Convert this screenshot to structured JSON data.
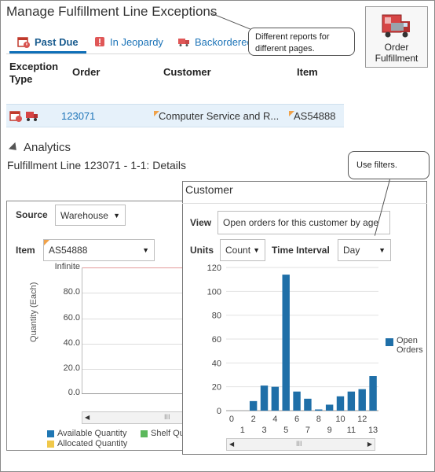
{
  "page": {
    "title": "Manage Fulfillment Line Exceptions"
  },
  "tabs": [
    {
      "label": "Past Due",
      "icon": "calendar-alert-icon"
    },
    {
      "label": "In Jeopardy",
      "icon": "jeopardy-icon"
    },
    {
      "label": "Backordered",
      "icon": "backorder-icon"
    }
  ],
  "callouts": {
    "reports": "Different  reports for different  pages.",
    "filters": "Use filters."
  },
  "order_fulfillment_button": {
    "line1": "Order",
    "line2": "Fulfillment"
  },
  "table": {
    "headers": {
      "exception_type_1": "Exception",
      "exception_type_2": "Type",
      "order": "Order",
      "customer": "Customer",
      "item": "Item"
    },
    "row": {
      "order": "123071",
      "customer": "Computer Service and R...",
      "item": "AS54888"
    }
  },
  "analytics": {
    "heading": "Analytics",
    "details_title": "Fulfillment Line 123071 - 1-1: Details"
  },
  "left_panel": {
    "source_label": "Source",
    "source_value": "Warehouse",
    "item_label": "Item",
    "item_value": "AS54888",
    "y_axis_label": "Quantity (Each)",
    "top_label": "Infinite",
    "ticks": [
      "80.0",
      "60.0",
      "40.0",
      "20.0",
      "0.0"
    ],
    "legend": [
      {
        "label": "Available Quantity",
        "color": "#1f77b4"
      },
      {
        "label": "Shelf Qu",
        "color": "#5cb85c"
      },
      {
        "label": "Allocated Quantity",
        "color": "#f0c84a"
      }
    ],
    "scroll_grip": "III"
  },
  "customer_panel": {
    "title": "Customer",
    "view_label": "View",
    "view_value": "Open orders for this customer by age",
    "units_label": "Units",
    "units_value": "Count",
    "interval_label": "Time Interval",
    "interval_value": "Day",
    "legend_label_1": "Open",
    "legend_label_2": "Orders",
    "scroll_grip": "III"
  },
  "chart_data": {
    "type": "bar",
    "categories": [
      "0",
      "1",
      "2",
      "3",
      "4",
      "5",
      "6",
      "7",
      "8",
      "9",
      "10",
      "11",
      "12",
      "13"
    ],
    "x_tick_top": [
      "0",
      "2",
      "4",
      "6",
      "8",
      "10",
      "12"
    ],
    "x_tick_bottom": [
      "1",
      "3",
      "5",
      "7",
      "9",
      "11",
      "13"
    ],
    "series": [
      {
        "name": "Open Orders",
        "color": "#1f6fa8",
        "values": [
          0,
          0,
          8,
          21,
          20,
          114,
          16,
          10,
          1,
          5,
          12,
          16,
          18,
          29
        ]
      }
    ],
    "y_ticks": [
      0,
      20,
      40,
      60,
      80,
      100,
      120
    ],
    "ylim": [
      0,
      120
    ]
  }
}
